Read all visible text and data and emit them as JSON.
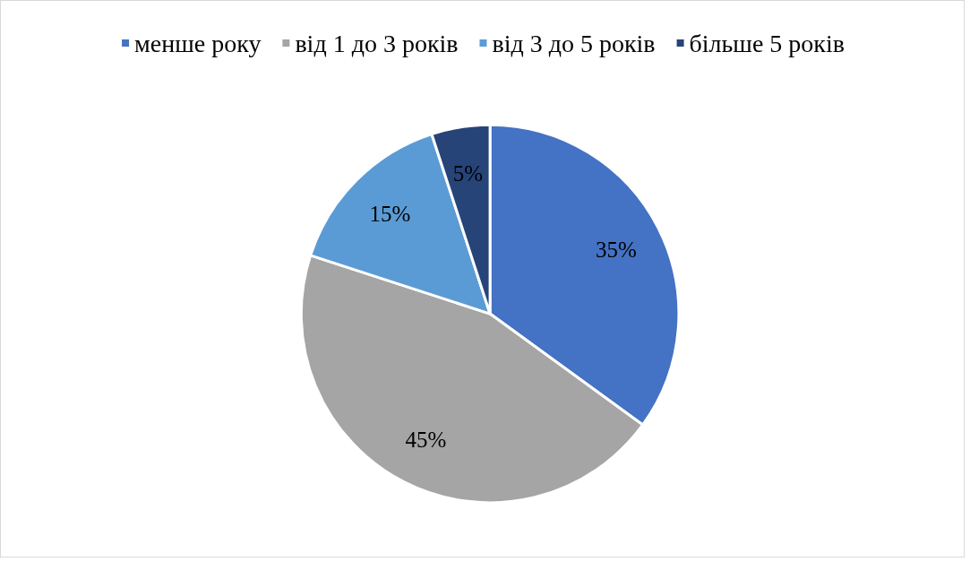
{
  "chart_data": {
    "type": "pie",
    "categories": [
      "менше року",
      "від 1 до 3 років",
      "від 3 до 5 років",
      "більше 5 років"
    ],
    "values": [
      35,
      45,
      15,
      5
    ],
    "colors": [
      "#4472c4",
      "#a5a5a5",
      "#5b9bd5",
      "#264478"
    ],
    "value_labels": [
      "35%",
      "45%",
      "15%",
      "5%"
    ],
    "legend": "top"
  }
}
